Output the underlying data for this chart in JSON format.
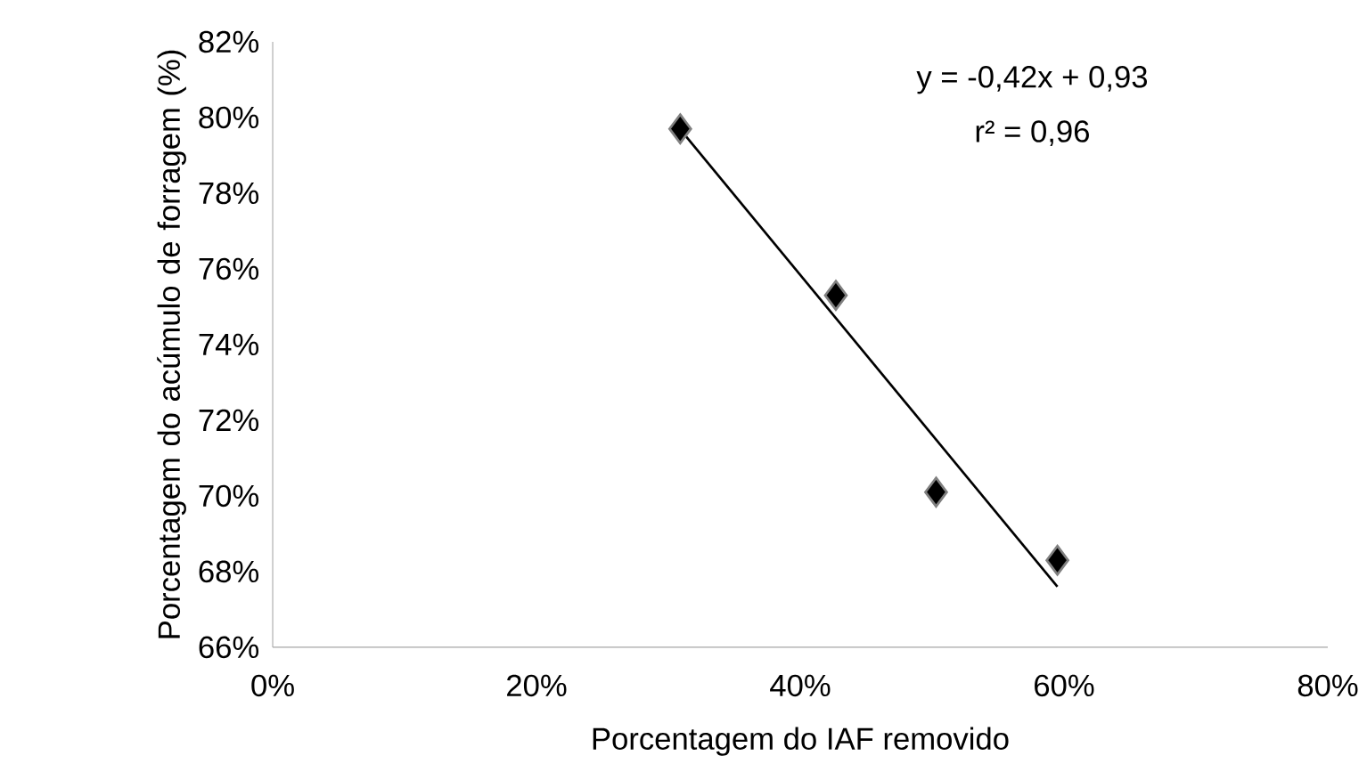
{
  "chart_data": {
    "type": "scatter",
    "xlabel": "Porcentagem do IAF removido",
    "ylabel": "Porcentagem do acúmulo de forragem (%)",
    "annotations": [
      "y = -0,42x + 0,93",
      "r² = 0,96"
    ],
    "series": [
      {
        "color": "#000000",
        "marker": "diamond",
        "x": [
          30.9,
          42.7,
          50.3,
          59.5
        ],
        "values": [
          79.7,
          75.3,
          70.1,
          68.3
        ]
      },
      {
        "type": "line",
        "color": "#000000",
        "marker": "none",
        "line_style": "solid",
        "x": [
          31.1,
          59.5
        ],
        "values": [
          79.6,
          67.6
        ]
      }
    ],
    "xlim": [
      0,
      80
    ],
    "ylim": [
      66,
      82
    ],
    "xticks": [
      {
        "value": 0,
        "label": "0%"
      },
      {
        "value": 20,
        "label": "20%"
      },
      {
        "value": 40,
        "label": "40%"
      },
      {
        "value": 60,
        "label": "60%"
      },
      {
        "value": 80,
        "label": "80%"
      }
    ],
    "yticks": [
      {
        "value": 66,
        "label": "66%"
      },
      {
        "value": 68,
        "label": "68%"
      },
      {
        "value": 70,
        "label": "70%"
      },
      {
        "value": 72,
        "label": "72%"
      },
      {
        "value": 74,
        "label": "74%"
      },
      {
        "value": 76,
        "label": "76%"
      },
      {
        "value": 78,
        "label": "78%"
      },
      {
        "value": 80,
        "label": "80%"
      },
      {
        "value": 82,
        "label": "82%"
      }
    ],
    "grid": false
  }
}
